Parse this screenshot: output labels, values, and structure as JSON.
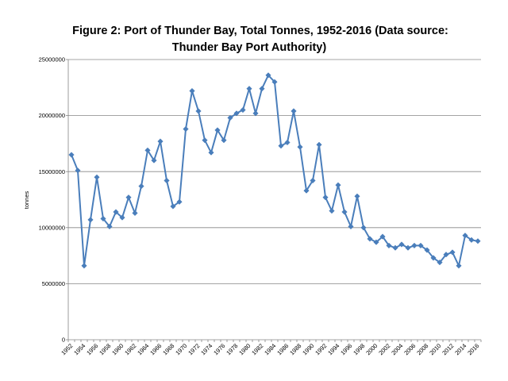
{
  "chart_data": {
    "type": "line",
    "title_line1": "Figure 2: Port of Thunder Bay, Total Tonnes, 1952-2016 (Data source:",
    "title_line2": "Thunder Bay Port Authority)",
    "xlabel": "",
    "ylabel": "tonnes",
    "ylim": [
      0,
      25000000
    ],
    "y_ticks": [
      0,
      5000000,
      10000000,
      15000000,
      20000000,
      25000000
    ],
    "y_tick_labels": [
      "0",
      "5000000",
      "10000000",
      "15000000",
      "20000000",
      "25000000"
    ],
    "x_tick_labels": [
      "1952",
      "1954",
      "1956",
      "1958",
      "1960",
      "1962",
      "1964",
      "1966",
      "1968",
      "1970",
      "1972",
      "1974",
      "1976",
      "1978",
      "1980",
      "1982",
      "1984",
      "1986",
      "1988",
      "1990",
      "1992",
      "1994",
      "1996",
      "1998",
      "2000",
      "2002",
      "2004",
      "2006",
      "2008",
      "2010",
      "2012",
      "2014",
      "2016"
    ],
    "grid": true,
    "legend": "none",
    "line_color": "#4a7ebb",
    "marker": "diamond",
    "series": [
      {
        "x": [
          1952,
          1953,
          1954,
          1955,
          1956,
          1957,
          1958,
          1959,
          1960,
          1961,
          1962,
          1963,
          1964,
          1965,
          1966,
          1967,
          1968,
          1969,
          1970,
          1971,
          1972,
          1973,
          1974,
          1975,
          1976,
          1977,
          1978,
          1979,
          1980,
          1981,
          1982,
          1983,
          1984,
          1985,
          1986,
          1987,
          1988,
          1989,
          1990,
          1991,
          1992,
          1993,
          1994,
          1995,
          1996,
          1997,
          1998,
          1999,
          2000,
          2001,
          2002,
          2003,
          2004,
          2005,
          2006,
          2007,
          2008,
          2009,
          2010,
          2011,
          2012,
          2013,
          2014,
          2015,
          2016
        ],
        "values": [
          16500000,
          15100000,
          6600000,
          10700000,
          14500000,
          10800000,
          10100000,
          11400000,
          10900000,
          12700000,
          11300000,
          13700000,
          16900000,
          16000000,
          17700000,
          14200000,
          11900000,
          12300000,
          18800000,
          22200000,
          20400000,
          17800000,
          16700000,
          18700000,
          17800000,
          19800000,
          20200000,
          20500000,
          22400000,
          20200000,
          22400000,
          23600000,
          23000000,
          17300000,
          17600000,
          20400000,
          17200000,
          13300000,
          14200000,
          17400000,
          12700000,
          11500000,
          13800000,
          11400000,
          10100000,
          12800000,
          10000000,
          9000000,
          8700000,
          9200000,
          8400000,
          8200000,
          8500000,
          8200000,
          8400000,
          8400000,
          8000000,
          7300000,
          6900000,
          7600000,
          7800000,
          6600000,
          9300000,
          8900000,
          8800000
        ]
      }
    ]
  }
}
